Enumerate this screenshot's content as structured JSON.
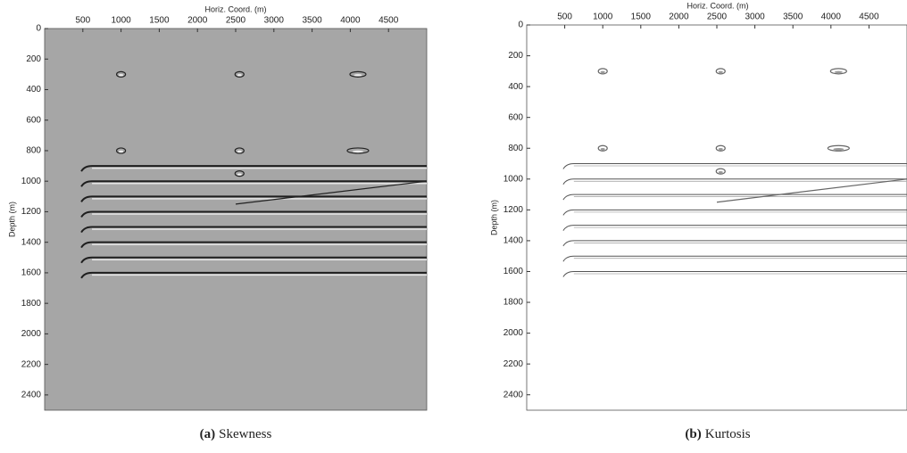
{
  "chart_data": [
    {
      "type": "image",
      "x_label": "Horiz. Coord. (m)",
      "y_label": "Depth (m)",
      "xlim": [
        0,
        5000
      ],
      "ylim": [
        0,
        2500
      ],
      "xticks": [
        500,
        1000,
        1500,
        2000,
        2500,
        3000,
        3500,
        4000,
        4500
      ],
      "yticks": [
        0,
        200,
        400,
        600,
        800,
        1000,
        1200,
        1400,
        1600,
        1800,
        2000,
        2200,
        2400
      ],
      "caption_label": "(a)",
      "caption_text": "Skewness",
      "background": "#a6a6a6"
    },
    {
      "type": "image",
      "x_label": "Horiz. Coord. (m)",
      "y_label": "Depth (m)",
      "xlim": [
        0,
        5000
      ],
      "ylim": [
        0,
        2500
      ],
      "xticks": [
        500,
        1000,
        1500,
        2000,
        2500,
        3000,
        3500,
        4000,
        4500
      ],
      "yticks": [
        0,
        200,
        400,
        600,
        800,
        1000,
        1200,
        1400,
        1600,
        1800,
        2000,
        2200,
        2400
      ],
      "caption_label": "(b)",
      "caption_text": "Kurtosis",
      "background": "#ffffff"
    }
  ]
}
